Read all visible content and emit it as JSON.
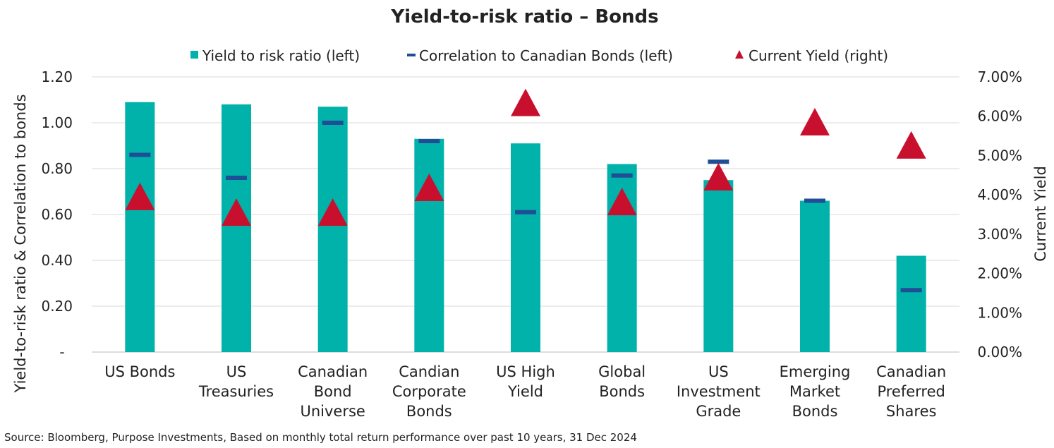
{
  "chart_data": {
    "type": "bar",
    "title": "Yield-to-risk ratio – Bonds",
    "ylabel": "Yield-to-risk ratio & Correlation to bonds",
    "y2label": "Current Yield",
    "ylim": [
      0,
      1.2
    ],
    "y2lim": [
      0,
      7
    ],
    "yticks": [
      "-",
      "0.20",
      "0.40",
      "0.60",
      "0.80",
      "1.00",
      "1.20"
    ],
    "y2ticks": [
      "0.00%",
      "1.00%",
      "2.00%",
      "3.00%",
      "4.00%",
      "5.00%",
      "6.00%",
      "7.00%"
    ],
    "grid": true,
    "legend_position": "top",
    "categories": [
      [
        "US Bonds"
      ],
      [
        "US",
        "Treasuries"
      ],
      [
        "Canadian",
        "Bond",
        "Universe"
      ],
      [
        "Candian",
        "Corporate",
        "Bonds"
      ],
      [
        "US High",
        "Yield"
      ],
      [
        "Global",
        "Bonds"
      ],
      [
        "US",
        "Investment",
        "Grade"
      ],
      [
        "Emerging",
        "Market",
        "Bonds"
      ],
      [
        "Canadian",
        "Preferred",
        "Shares"
      ]
    ],
    "series": [
      {
        "name": "Yield to risk ratio (left)",
        "type": "bar",
        "axis": "left",
        "color": "#00b2a9",
        "values": [
          1.09,
          1.08,
          1.07,
          0.93,
          0.91,
          0.82,
          0.75,
          0.66,
          0.42
        ]
      },
      {
        "name": "Correlation to Canadian Bonds (left)",
        "type": "dash",
        "axis": "left",
        "color": "#1f4e96",
        "values": [
          0.86,
          0.76,
          1.0,
          0.92,
          0.61,
          0.77,
          0.83,
          0.66,
          0.27
        ]
      },
      {
        "name": "Current Yield (right)",
        "type": "triangle",
        "axis": "right",
        "color": "#c8102e",
        "values": [
          3.88,
          3.48,
          3.48,
          4.11,
          6.27,
          3.75,
          4.38,
          5.78,
          5.19
        ]
      }
    ],
    "source": "Source: Bloomberg, Purpose Investments, Based on monthly total return performance over past 10 years, 31 Dec 2024"
  }
}
